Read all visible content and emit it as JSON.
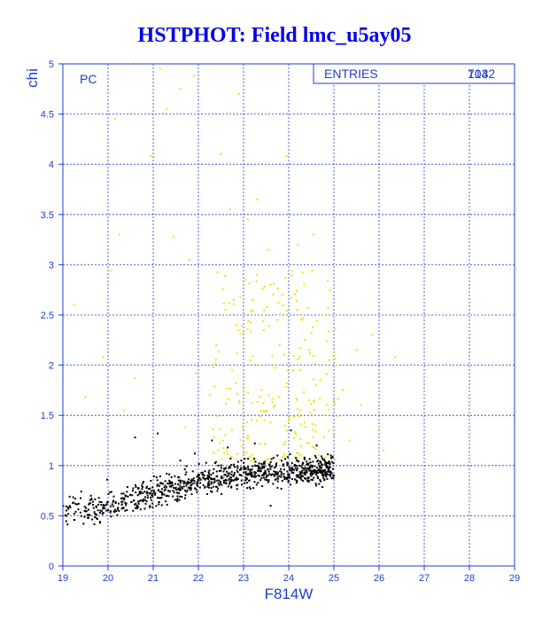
{
  "chart_data": {
    "type": "scatter",
    "title": "HSTPHOT: Field lmc_u5ay05",
    "xlabel": "F814W",
    "ylabel": "chi",
    "xlim": [
      19,
      29
    ],
    "ylim": [
      0,
      5
    ],
    "xticks": [
      "19",
      "20",
      "21",
      "22",
      "23",
      "24",
      "25",
      "26",
      "27",
      "28",
      "29"
    ],
    "yticks": [
      "0",
      "0.5",
      "1",
      "1.5",
      "2",
      "2.5",
      "3",
      "3.5",
      "4",
      "4.5",
      "5"
    ],
    "grid": true,
    "panel_label": "PC",
    "stats": {
      "label": "ENTRIES",
      "values": [
        "1032",
        "714"
      ]
    },
    "series_colors": [
      "#000000",
      "#e8e800"
    ],
    "series": [
      {
        "color": "#000000",
        "trend": [
          [
            19.0,
            0.56
          ],
          [
            20.0,
            0.58
          ],
          [
            21.0,
            0.72
          ],
          [
            22.0,
            0.84
          ],
          [
            23.0,
            0.92
          ],
          [
            24.0,
            0.95
          ],
          [
            25.0,
            0.97
          ]
        ],
        "count": 1032,
        "x_range": [
          19.0,
          25.0
        ],
        "points": [
          [
            19.12,
            0.58
          ],
          [
            19.25,
            0.52
          ],
          [
            19.35,
            0.62
          ],
          [
            19.48,
            0.55
          ],
          [
            19.55,
            0.48
          ],
          [
            19.62,
            0.7
          ],
          [
            19.75,
            0.51
          ],
          [
            19.82,
            0.44
          ],
          [
            19.9,
            0.61
          ],
          [
            19.98,
            0.86
          ],
          [
            20.05,
            0.54
          ],
          [
            20.12,
            0.65
          ],
          [
            20.22,
            0.58
          ],
          [
            20.3,
            0.72
          ],
          [
            20.38,
            0.55
          ],
          [
            20.55,
            0.75
          ],
          [
            20.6,
            1.28
          ],
          [
            20.68,
            0.62
          ],
          [
            20.75,
            0.8
          ],
          [
            20.88,
            0.68
          ],
          [
            21.1,
            1.32
          ],
          [
            21.15,
            0.74
          ],
          [
            21.3,
            0.92
          ],
          [
            21.45,
            0.78
          ],
          [
            21.6,
            1.05
          ],
          [
            21.75,
            0.82
          ],
          [
            21.92,
            1.12
          ],
          [
            22.1,
            0.88
          ],
          [
            22.3,
            1.25
          ],
          [
            22.5,
            0.95
          ],
          [
            22.65,
            1.18
          ],
          [
            22.8,
            0.86
          ],
          [
            22.95,
            1.05
          ],
          [
            23.1,
            0.92
          ],
          [
            23.25,
            1.22
          ],
          [
            23.45,
            0.88
          ],
          [
            23.6,
            0.6
          ],
          [
            23.75,
            1.1
          ],
          [
            23.9,
            0.96
          ],
          [
            24.05,
            1.35
          ],
          [
            24.2,
            0.9
          ],
          [
            24.35,
            1.08
          ],
          [
            24.5,
            0.92
          ],
          [
            24.62,
            1.2
          ],
          [
            24.75,
            0.95
          ],
          [
            24.9,
            1.02
          ]
        ]
      },
      {
        "color": "#e8e800",
        "count": 714,
        "points": [
          [
            19.25,
            2.6
          ],
          [
            19.5,
            1.68
          ],
          [
            19.9,
            2.08
          ],
          [
            20.05,
            2.94
          ],
          [
            20.15,
            4.45
          ],
          [
            20.25,
            3.3
          ],
          [
            20.35,
            1.55
          ],
          [
            20.55,
            5.0
          ],
          [
            20.6,
            1.87
          ],
          [
            20.95,
            4.08
          ],
          [
            21.15,
            4.95
          ],
          [
            21.3,
            4.55
          ],
          [
            21.45,
            3.28
          ],
          [
            21.6,
            4.75
          ],
          [
            21.7,
            1.38
          ],
          [
            21.8,
            3.05
          ],
          [
            21.9,
            4.88
          ],
          [
            21.95,
            1.92
          ],
          [
            22.25,
            1.7
          ],
          [
            22.4,
            2.2
          ],
          [
            22.5,
            4.1
          ],
          [
            22.6,
            2.55
          ],
          [
            22.7,
            3.55
          ],
          [
            22.75,
            1.95
          ],
          [
            22.85,
            2.4
          ],
          [
            22.9,
            4.7
          ],
          [
            23.0,
            1.8
          ],
          [
            23.05,
            2.85
          ],
          [
            23.1,
            3.45
          ],
          [
            23.15,
            2.05
          ],
          [
            23.2,
            2.65
          ],
          [
            23.3,
            3.65
          ],
          [
            23.4,
            1.75
          ],
          [
            23.45,
            2.35
          ],
          [
            23.55,
            3.15
          ],
          [
            23.6,
            2.8
          ],
          [
            23.7,
            1.6
          ],
          [
            23.8,
            2.2
          ],
          [
            23.85,
            2.7
          ],
          [
            23.95,
            4.08
          ],
          [
            24.0,
            1.45
          ],
          [
            24.1,
            1.95
          ],
          [
            24.2,
            3.2
          ],
          [
            24.25,
            1.55
          ],
          [
            24.35,
            2.25
          ],
          [
            24.45,
            1.65
          ],
          [
            24.55,
            3.3
          ],
          [
            24.6,
            1.4
          ],
          [
            24.7,
            1.85
          ],
          [
            24.8,
            1.5
          ],
          [
            24.9,
            2.05
          ],
          [
            25.0,
            1.3
          ],
          [
            25.2,
            1.75
          ],
          [
            25.35,
            1.25
          ],
          [
            25.5,
            2.15
          ],
          [
            25.6,
            1.6
          ],
          [
            25.85,
            2.3
          ],
          [
            26.0,
            1.38
          ],
          [
            26.35,
            2.08
          ],
          [
            26.1,
            1.15
          ]
        ]
      }
    ]
  }
}
